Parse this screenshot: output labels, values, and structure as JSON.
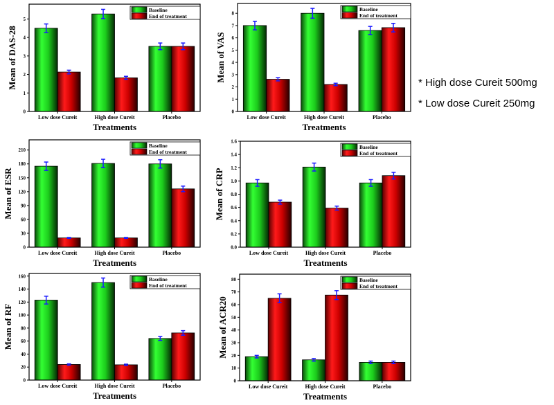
{
  "notes": [
    "* High dose Cureit 500mg",
    "* Low dose Cureit 250mg"
  ],
  "colors": {
    "baseline": "#22dd22",
    "end_of_treatment": "#ee1111",
    "error_bar": "#1a1aff"
  },
  "chart_data": [
    {
      "type": "bar",
      "title": "",
      "xlabel": "Treatments",
      "ylabel": "Mean of DAS-28",
      "categories": [
        "Low dose Cureit",
        "High dose Cureit",
        "Placebo"
      ],
      "ylim": [
        0,
        5.8
      ],
      "yticks": [
        "0",
        "1",
        "2",
        "3",
        "4",
        "5"
      ],
      "ytick_values": [
        0,
        1,
        2,
        3,
        4,
        5
      ],
      "legend": "top-right",
      "grid": false,
      "series": [
        {
          "name": "Baseline",
          "values": [
            4.5,
            5.27,
            3.52
          ],
          "errors": [
            0.23,
            0.25,
            0.18
          ]
        },
        {
          "name": "End of treatment",
          "values": [
            2.13,
            1.82,
            3.52
          ],
          "errors": [
            0.1,
            0.08,
            0.18
          ]
        }
      ]
    },
    {
      "type": "bar",
      "title": "",
      "xlabel": "Treatments",
      "ylabel": "Mean of VAS",
      "categories": [
        "Low dose Cureit",
        "High dose Cureit",
        "Placebo"
      ],
      "ylim": [
        0,
        8.8
      ],
      "yticks": [
        "0",
        "1",
        "2",
        "3",
        "4",
        "5",
        "6",
        "7",
        "8"
      ],
      "ytick_values": [
        0,
        1,
        2,
        3,
        4,
        5,
        6,
        7,
        8
      ],
      "legend": "top-right",
      "grid": false,
      "series": [
        {
          "name": "Baseline",
          "values": [
            7.0,
            8.0,
            6.6
          ],
          "errors": [
            0.35,
            0.4,
            0.33
          ]
        },
        {
          "name": "End of treatment",
          "values": [
            2.62,
            2.2,
            6.83
          ],
          "errors": [
            0.13,
            0.1,
            0.35
          ]
        }
      ]
    },
    {
      "type": "bar",
      "title": "",
      "xlabel": "Treatments",
      "ylabel": "Mean of ESR",
      "categories": [
        "Low dose Cureit",
        "High dose Cureit",
        "Placebo"
      ],
      "ylim": [
        0,
        232
      ],
      "yticks": [
        "0",
        "30",
        "60",
        "90",
        "120",
        "150",
        "180",
        "210"
      ],
      "ytick_values": [
        0,
        30,
        60,
        90,
        120,
        150,
        180,
        210
      ],
      "legend": "top-right",
      "grid": false,
      "series": [
        {
          "name": "Baseline",
          "values": [
            175,
            181,
            180
          ],
          "errors": [
            9,
            9,
            9
          ]
        },
        {
          "name": "End of treatment",
          "values": [
            20,
            20,
            126
          ],
          "errors": [
            1,
            1,
            6
          ]
        }
      ]
    },
    {
      "type": "bar",
      "title": "",
      "xlabel": "Treatments",
      "ylabel": "Mean of CRP",
      "categories": [
        "Low dose Cureit",
        "High dose Cureit",
        "Placebo"
      ],
      "ylim": [
        0,
        1.6
      ],
      "yticks": [
        "0.0",
        "0.2",
        "0.4",
        "0.6",
        "0.8",
        "1.0",
        "1.2",
        "1.4",
        "1.6"
      ],
      "ytick_values": [
        0,
        0.2,
        0.4,
        0.6,
        0.8,
        1.0,
        1.2,
        1.4,
        1.6
      ],
      "legend": "top-right",
      "grid": false,
      "series": [
        {
          "name": "Baseline",
          "values": [
            0.97,
            1.21,
            0.97
          ],
          "errors": [
            0.05,
            0.06,
            0.05
          ]
        },
        {
          "name": "End of treatment",
          "values": [
            0.68,
            0.59,
            1.08
          ],
          "errors": [
            0.03,
            0.03,
            0.05
          ]
        }
      ]
    },
    {
      "type": "bar",
      "title": "",
      "xlabel": "Treatments",
      "ylabel": "Mean of RF",
      "categories": [
        "Low dose Cureit",
        "High dose Cureit",
        "Placebo"
      ],
      "ylim": [
        0,
        164
      ],
      "yticks": [
        "0",
        "20",
        "40",
        "60",
        "80",
        "100",
        "120",
        "140",
        "160"
      ],
      "ytick_values": [
        0,
        20,
        40,
        60,
        80,
        100,
        120,
        140,
        160
      ],
      "legend": "top-right",
      "grid": false,
      "series": [
        {
          "name": "Baseline",
          "values": [
            123,
            150,
            64
          ],
          "errors": [
            6,
            7,
            3
          ]
        },
        {
          "name": "End of treatment",
          "values": [
            24,
            23.5,
            72.5
          ],
          "errors": [
            1,
            1,
            3.5
          ]
        }
      ]
    },
    {
      "type": "bar",
      "title": "",
      "xlabel": "Treatments",
      "ylabel": "Mean of ACR20",
      "categories": [
        "Low dose Cureit",
        "High dose Cureit",
        "Placebo"
      ],
      "ylim": [
        0,
        84
      ],
      "yticks": [
        "0",
        "10",
        "20",
        "30",
        "40",
        "50",
        "60",
        "70",
        "80"
      ],
      "ytick_values": [
        0,
        10,
        20,
        30,
        40,
        50,
        60,
        70,
        80
      ],
      "legend": "top-right",
      "grid": false,
      "series": [
        {
          "name": "Baseline",
          "values": [
            19,
            16.5,
            14.5
          ],
          "errors": [
            1,
            1,
            1
          ]
        },
        {
          "name": "End of treatment",
          "values": [
            65,
            67.5,
            14.5
          ],
          "errors": [
            3.5,
            3.5,
            1
          ]
        }
      ]
    }
  ]
}
